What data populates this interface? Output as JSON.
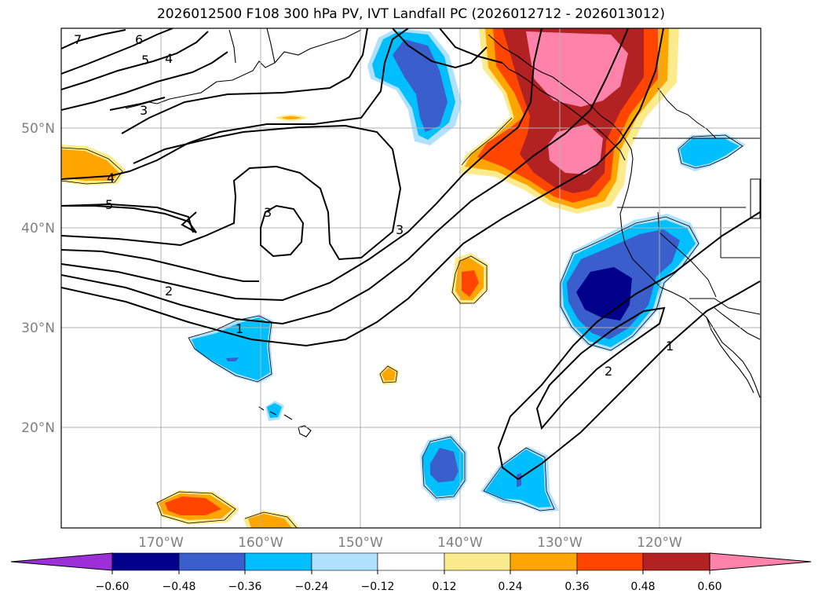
{
  "title": "2026012500 F108 300 hPa PV, IVT Landfall PC (2026012712 - 2026013012)",
  "latitude_labels": [
    "50°N",
    "40°N",
    "30°N",
    "20°N"
  ],
  "longitude_labels": [
    "170°W",
    "160°W",
    "150°W",
    "140°W",
    "130°W",
    "120°W"
  ],
  "contour_labels": [
    "7",
    "6",
    "5",
    "4",
    "3",
    "4",
    "5",
    "3",
    "3",
    "2",
    "1",
    "2",
    "1"
  ],
  "colorbar": {
    "ticks": [
      "−0.60",
      "−0.48",
      "−0.36",
      "−0.24",
      "−0.12",
      "0.12",
      "0.24",
      "0.36",
      "0.48",
      "0.60"
    ],
    "colors": [
      "#9b30d9",
      "#00008b",
      "#3a5fcd",
      "#00bfff",
      "#b0e2ff",
      "#ffffff",
      "#fceb8d",
      "#ffa500",
      "#ff4500",
      "#b22222",
      "#ff82ab"
    ]
  }
}
